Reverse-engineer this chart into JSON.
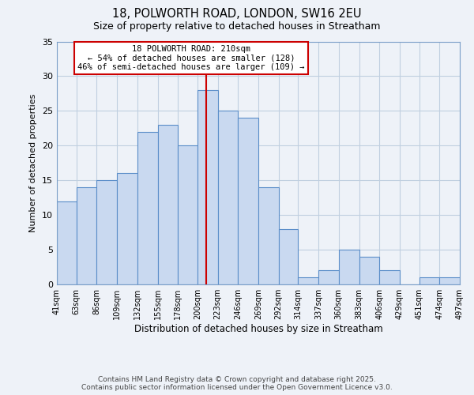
{
  "title": "18, POLWORTH ROAD, LONDON, SW16 2EU",
  "subtitle": "Size of property relative to detached houses in Streatham",
  "xlabel": "Distribution of detached houses by size in Streatham",
  "ylabel": "Number of detached properties",
  "bins": [
    41,
    63,
    86,
    109,
    132,
    155,
    178,
    200,
    223,
    246,
    269,
    292,
    314,
    337,
    360,
    383,
    406,
    429,
    451,
    474,
    497
  ],
  "counts": [
    12,
    14,
    15,
    16,
    22,
    23,
    20,
    28,
    25,
    24,
    14,
    8,
    1,
    2,
    5,
    4,
    2,
    0,
    1,
    1
  ],
  "bar_facecolor": "#c9d9f0",
  "bar_edgecolor": "#5b8ec9",
  "property_line_x": 210,
  "property_line_color": "#cc0000",
  "annotation_title": "18 POLWORTH ROAD: 210sqm",
  "annotation_line1": "← 54% of detached houses are smaller (128)",
  "annotation_line2": "46% of semi-detached houses are larger (109) →",
  "annotation_box_edgecolor": "#cc0000",
  "annotation_box_facecolor": "#ffffff",
  "ylim": [
    0,
    35
  ],
  "yticks": [
    0,
    5,
    10,
    15,
    20,
    25,
    30,
    35
  ],
  "grid_color": "#c0cfe0",
  "background_color": "#eef2f8",
  "footer1": "Contains HM Land Registry data © Crown copyright and database right 2025.",
  "footer2": "Contains public sector information licensed under the Open Government Licence v3.0."
}
